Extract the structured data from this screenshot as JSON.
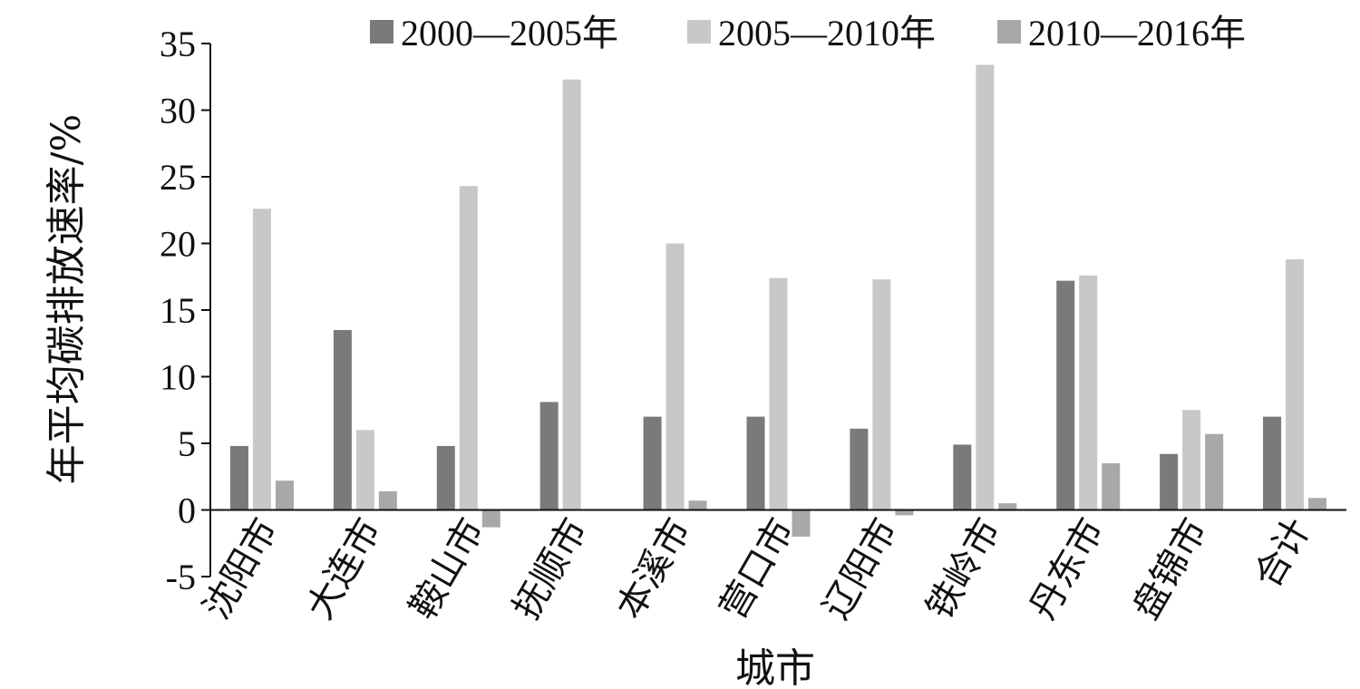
{
  "chart_data": {
    "type": "bar",
    "title": "",
    "xlabel": "城市",
    "ylabel": "年平均碳排放速率/%",
    "ylim": [
      -5,
      35
    ],
    "yticks": [
      -5,
      0,
      5,
      10,
      15,
      20,
      25,
      30,
      35
    ],
    "grid": false,
    "legend_position": "top",
    "categories": [
      "沈阳市",
      "大连市",
      "鞍山市",
      "抚顺市",
      "本溪市",
      "营口市",
      "辽阳市",
      "铁岭市",
      "丹东市",
      "盘锦市",
      "合计"
    ],
    "series": [
      {
        "name": "2000—2005年",
        "color": "#7a7a7a",
        "values": [
          4.8,
          13.5,
          4.8,
          8.1,
          7.0,
          7.0,
          6.1,
          4.9,
          17.2,
          4.2,
          7.0
        ]
      },
      {
        "name": "2005—2010年",
        "color": "#c8c8c8",
        "values": [
          22.6,
          6.0,
          24.3,
          32.3,
          20.0,
          17.4,
          17.3,
          33.4,
          17.6,
          7.5,
          18.8
        ]
      },
      {
        "name": "2010—2016年",
        "color": "#a8a8a8",
        "values": [
          2.2,
          1.4,
          -1.3,
          0.0,
          0.7,
          -2.0,
          -0.4,
          0.5,
          3.5,
          5.7,
          0.9
        ]
      }
    ]
  }
}
